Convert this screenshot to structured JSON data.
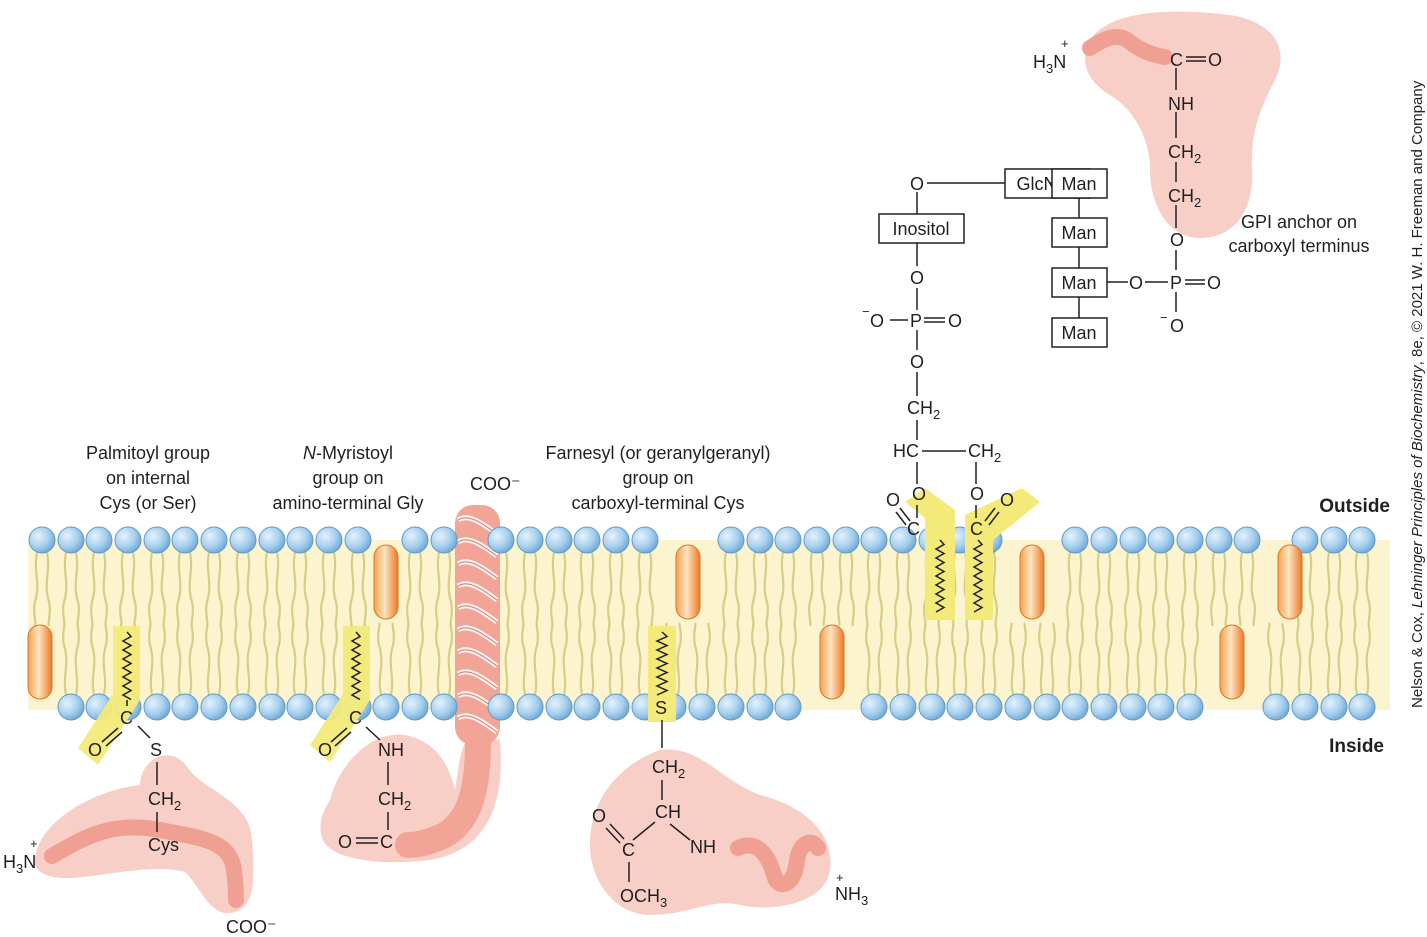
{
  "labels": {
    "palmitoyl": [
      "Palmitoyl group",
      "on internal",
      "Cys (or Ser)"
    ],
    "myristoyl_n": "N",
    "myristoyl_rest": "-Myristoyl",
    "myristoyl": [
      "group on",
      "amino-terminal Gly"
    ],
    "farnesyl": [
      "Farnesyl (or geranylgeranyl)",
      "group on",
      "carboxyl-terminal Cys"
    ],
    "gpi": [
      "GPI anchor on",
      "carboxyl terminus"
    ],
    "outside": "Outside",
    "inside": "Inside",
    "coo_tm": "COO⁻",
    "coo_cys": "COO⁻"
  },
  "sugars": {
    "inositol": "Inositol",
    "glcnac": "GlcNAc",
    "man": [
      "Man",
      "Man",
      "Man",
      "Man"
    ]
  },
  "credit": {
    "prefix": "Nelson & Cox, ",
    "book": "Lehninger Principles of Biochemistry",
    "suffix": ", 8e, © 2021 W. H. Freeman and Company"
  },
  "colors": {
    "bilayer": "#fbf3c8",
    "headgroup": "#9cc8ea",
    "headgroup_stroke": "#5e9bc9",
    "tail": "#e6dc9a",
    "anchor": "#f3ea7a",
    "protein": "#f7cfc6",
    "protein_chain": "#f0a093",
    "helix": "#f2a597",
    "embedded": "#f08a3a"
  }
}
